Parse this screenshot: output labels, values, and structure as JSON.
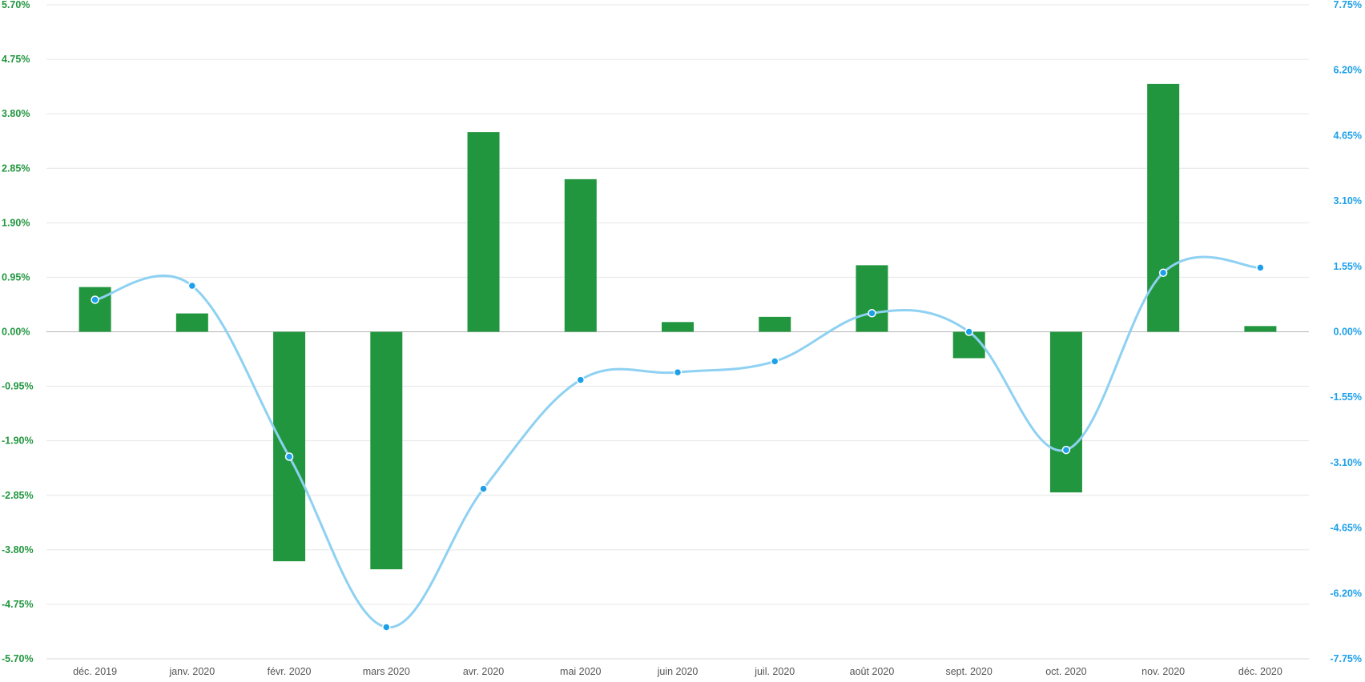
{
  "chart_data": {
    "type": "bar",
    "categories": [
      "déc. 2019",
      "janv. 2020",
      "févr. 2020",
      "mars 2020",
      "avr. 2020",
      "mai 2020",
      "juin 2020",
      "juil. 2020",
      "août 2020",
      "sept. 2020",
      "oct. 2020",
      "nov. 2020",
      "déc. 2020"
    ],
    "series": [
      {
        "type": "bar",
        "axis": "left",
        "color": "#22963f",
        "values": [
          0.78,
          0.32,
          -4.0,
          -4.14,
          3.48,
          2.66,
          0.17,
          0.26,
          1.16,
          -0.46,
          -2.8,
          4.32,
          0.1
        ]
      },
      {
        "type": "line",
        "axis": "right",
        "color": "#8ed1f2",
        "marker_color": "#1ea0e8",
        "values": [
          0.76,
          1.09,
          -2.96,
          -7.0,
          -3.72,
          -1.14,
          -0.96,
          -0.7,
          0.44,
          0.0,
          -2.8,
          1.4,
          1.52
        ]
      }
    ],
    "y_left": {
      "range": [
        -5.7,
        5.7
      ],
      "ticks": [
        "5.70%",
        "4.75%",
        "3.80%",
        "2.85%",
        "1.90%",
        "0.95%",
        "0.00%",
        "-0.95%",
        "-1.90%",
        "-2.85%",
        "-3.80%",
        "-4.75%",
        "-5.70%"
      ],
      "color": "#22963f"
    },
    "y_right": {
      "range": [
        -7.75,
        7.75
      ],
      "ticks": [
        "7.75%",
        "6.20%",
        "4.65%",
        "3.10%",
        "1.55%",
        "0.00%",
        "-1.55%",
        "-3.10%",
        "-4.65%",
        "-6.20%",
        "-7.75%"
      ],
      "color": "#1ea0e8"
    },
    "grid": true
  }
}
